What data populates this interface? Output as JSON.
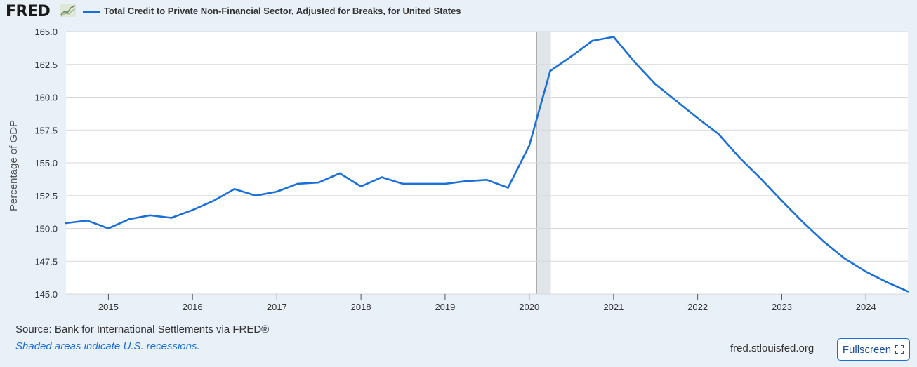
{
  "header": {
    "logo_text": "FRED",
    "logo_icon": "fred-graph-icon"
  },
  "chart_data": {
    "type": "line",
    "title": "",
    "xlabel": "",
    "ylabel": "Percentage of GDP",
    "ylim": [
      145.0,
      165.0
    ],
    "yticks": [
      "145.0",
      "147.5",
      "150.0",
      "152.5",
      "155.0",
      "157.5",
      "160.0",
      "162.5",
      "165.0"
    ],
    "xticks": [
      "2015",
      "2016",
      "2017",
      "2018",
      "2019",
      "2020",
      "2021",
      "2022",
      "2023",
      "2024"
    ],
    "xlim": [
      "2014-07-01",
      "2024-07-01"
    ],
    "grid": true,
    "series": [
      {
        "name": "Total Credit to Private Non-Financial Sector, Adjusted for Breaks, for United States",
        "color": "#1a6fd8",
        "points": [
          [
            "2014-07-01",
            150.4
          ],
          [
            "2014-10-01",
            150.6
          ],
          [
            "2015-01-01",
            150.0
          ],
          [
            "2015-04-01",
            150.7
          ],
          [
            "2015-07-01",
            151.0
          ],
          [
            "2015-10-01",
            150.8
          ],
          [
            "2016-01-01",
            151.4
          ],
          [
            "2016-04-01",
            152.1
          ],
          [
            "2016-07-01",
            153.0
          ],
          [
            "2016-10-01",
            152.5
          ],
          [
            "2017-01-01",
            152.8
          ],
          [
            "2017-04-01",
            153.4
          ],
          [
            "2017-07-01",
            153.5
          ],
          [
            "2017-10-01",
            154.2
          ],
          [
            "2018-01-01",
            153.2
          ],
          [
            "2018-04-01",
            153.9
          ],
          [
            "2018-07-01",
            153.4
          ],
          [
            "2018-10-01",
            153.4
          ],
          [
            "2019-01-01",
            153.4
          ],
          [
            "2019-04-01",
            153.6
          ],
          [
            "2019-07-01",
            153.7
          ],
          [
            "2019-10-01",
            153.1
          ],
          [
            "2020-01-01",
            156.3
          ],
          [
            "2020-04-01",
            162.0
          ],
          [
            "2020-07-01",
            163.1
          ],
          [
            "2020-10-01",
            164.3
          ],
          [
            "2021-01-01",
            164.6
          ],
          [
            "2021-04-01",
            162.7
          ],
          [
            "2021-07-01",
            161.0
          ],
          [
            "2021-10-01",
            159.7
          ],
          [
            "2022-01-01",
            158.4
          ],
          [
            "2022-04-01",
            157.2
          ],
          [
            "2022-07-01",
            155.4
          ],
          [
            "2022-10-01",
            153.8
          ],
          [
            "2023-01-01",
            152.1
          ],
          [
            "2023-04-01",
            150.5
          ],
          [
            "2023-07-01",
            149.0
          ],
          [
            "2023-10-01",
            147.7
          ],
          [
            "2024-01-01",
            146.7
          ],
          [
            "2024-04-01",
            145.9
          ],
          [
            "2024-07-01",
            145.2
          ]
        ]
      }
    ],
    "recessions": [
      {
        "start": "2020-02-01",
        "end": "2020-04-01"
      }
    ]
  },
  "footer": {
    "source": "Source: Bank for International Settlements via FRED®",
    "note": "Shaded areas indicate U.S. recessions.",
    "site": "fred.stlouisfed.org",
    "fullscreen_label": "Fullscreen"
  }
}
